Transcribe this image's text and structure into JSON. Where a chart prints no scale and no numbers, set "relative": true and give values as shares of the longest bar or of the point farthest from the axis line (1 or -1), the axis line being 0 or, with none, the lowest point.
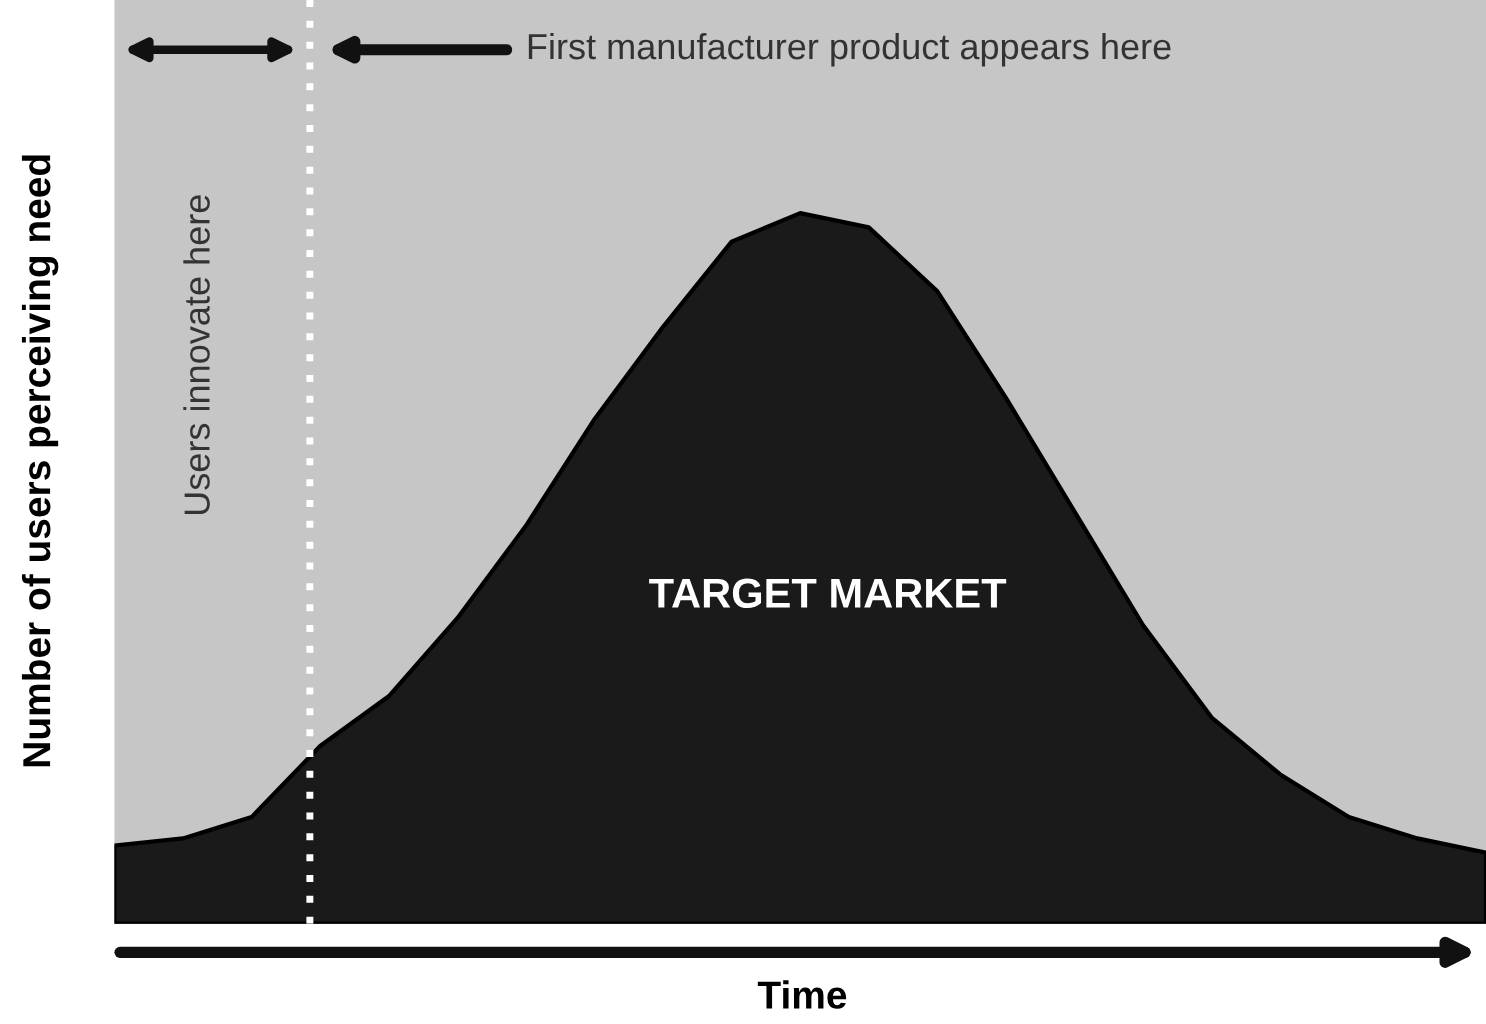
{
  "chart_data": {
    "type": "area",
    "relative": true,
    "xlabel": "Time",
    "ylabel": "Number of users perceiving need",
    "categories": [
      null,
      null,
      null,
      null,
      null,
      null,
      null,
      null,
      null,
      null,
      null,
      null,
      null,
      null,
      null,
      null,
      null,
      null,
      null,
      null,
      null
    ],
    "series": [
      {
        "color": "#1a1a1a",
        "values": [
          0.11,
          0.12,
          0.15,
          0.25,
          0.32,
          0.43,
          0.56,
          0.71,
          0.84,
          0.96,
          1.0,
          0.98,
          0.89,
          0.74,
          0.58,
          0.42,
          0.29,
          0.21,
          0.15,
          0.12,
          0.1
        ]
      }
    ],
    "annotations": [
      "Users innovate here",
      "First manufacturer product appears here",
      "TARGET MARKET"
    ],
    "grid": false,
    "legend": false
  }
}
